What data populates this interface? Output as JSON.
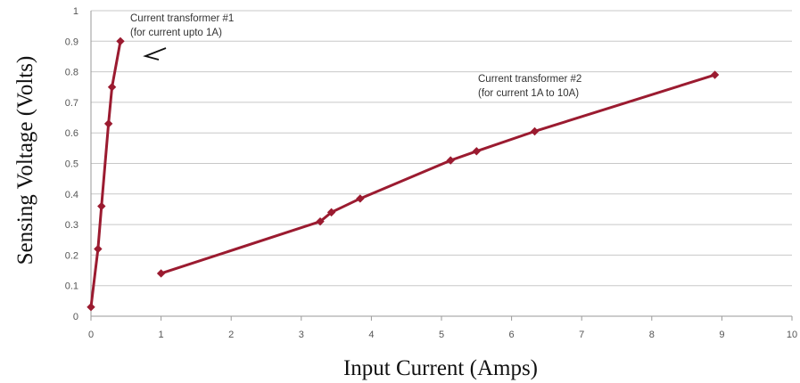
{
  "colors": {
    "series": "#9b1b30",
    "grid": "#c8c8c8",
    "axis_text": "#555555"
  },
  "chart_data": {
    "type": "line",
    "title": "",
    "xlabel": "Input Current (Amps)",
    "ylabel": "Sensing Voltage (Volts)",
    "xlim": [
      0,
      10
    ],
    "ylim": [
      0,
      1
    ],
    "grid": "horizontal",
    "legend": "none",
    "x_ticks": [
      "0",
      "1",
      "2",
      "3",
      "4",
      "5",
      "6",
      "7",
      "8",
      "9",
      "10"
    ],
    "y_ticks": [
      "0",
      "0.1",
      "0.2",
      "0.3",
      "0.4",
      "0.5",
      "0.6",
      "0.7",
      "0.8",
      "0.9",
      "1"
    ],
    "series": [
      {
        "x": [
          0.0,
          0.1,
          0.15,
          0.25,
          0.3,
          0.42
        ],
        "y": [
          0.03,
          0.22,
          0.36,
          0.63,
          0.75,
          0.9
        ]
      },
      {
        "x": [
          1.0,
          3.27,
          3.43,
          3.84,
          5.13,
          5.5,
          6.33,
          8.9
        ],
        "y": [
          0.14,
          0.31,
          0.34,
          0.385,
          0.51,
          0.54,
          0.605,
          0.79
        ]
      }
    ],
    "annotations": [
      {
        "lines": [
          "Current transformer #1",
          "(for current upto 1A)"
        ],
        "target": "series-1"
      },
      {
        "lines": [
          "Current transformer #2",
          "(for current 1A to 10A)"
        ],
        "target": "series-2"
      }
    ]
  }
}
